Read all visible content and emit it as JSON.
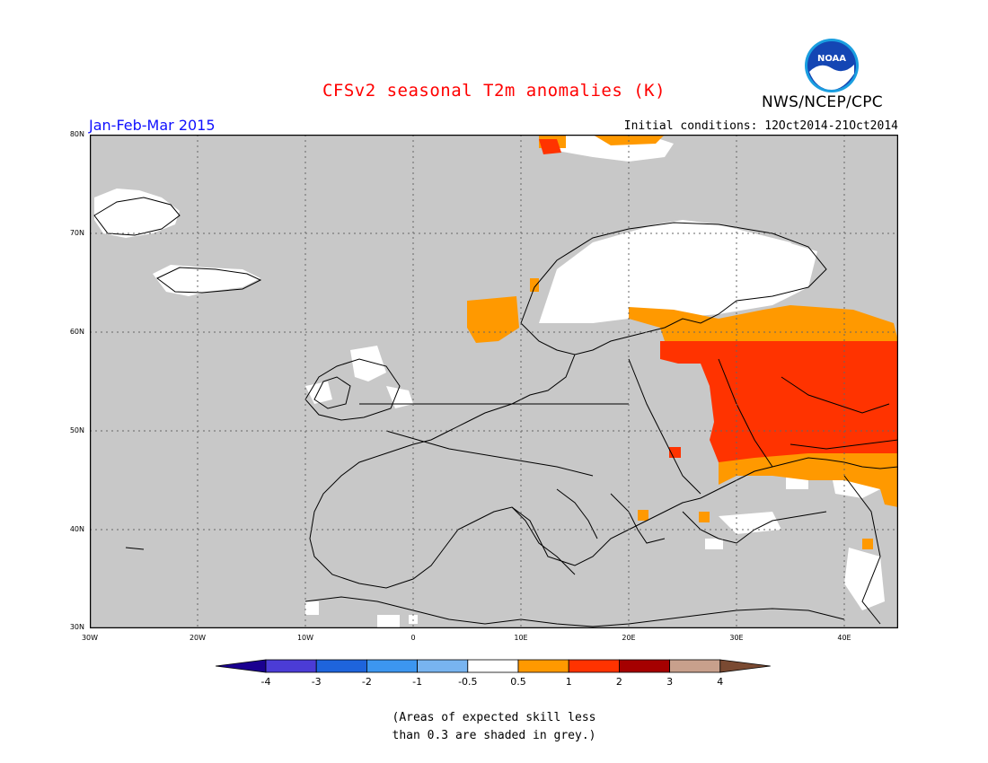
{
  "header": {
    "title": "CFSv2 seasonal T2m anomalies (K)",
    "organization": "NWS/NCEP/CPC",
    "season": "Jan-Feb-Mar 2015",
    "initial_conditions": "Initial conditions: 12Oct2014-21Oct2014",
    "logo_text": "NOAA"
  },
  "map": {
    "lon_range": [
      -30,
      45
    ],
    "lat_range": [
      30,
      80
    ],
    "lat_labels": [
      "80N",
      "70N",
      "60N",
      "50N",
      "40N",
      "30N"
    ],
    "lon_labels": [
      "30W",
      "20W",
      "10W",
      "0",
      "10E",
      "20E",
      "30E",
      "40E"
    ],
    "background_color": "#c8c8c8",
    "grid": "dotted"
  },
  "colorbar": {
    "ticks": [
      "-4",
      "-3",
      "-2",
      "-1",
      "-0.5",
      "0.5",
      "1",
      "2",
      "3",
      "4"
    ],
    "colors": [
      "#1a0090",
      "#4b3cd6",
      "#1e64dc",
      "#3c96f0",
      "#78b4f0",
      "#ffffff",
      "#ff9900",
      "#ff3300",
      "#a50000",
      "#c8a08c",
      "#7a4a32"
    ]
  },
  "note": {
    "line1": "(Areas of expected skill less",
    "line2": "than 0.3 are shaded in grey.)"
  }
}
